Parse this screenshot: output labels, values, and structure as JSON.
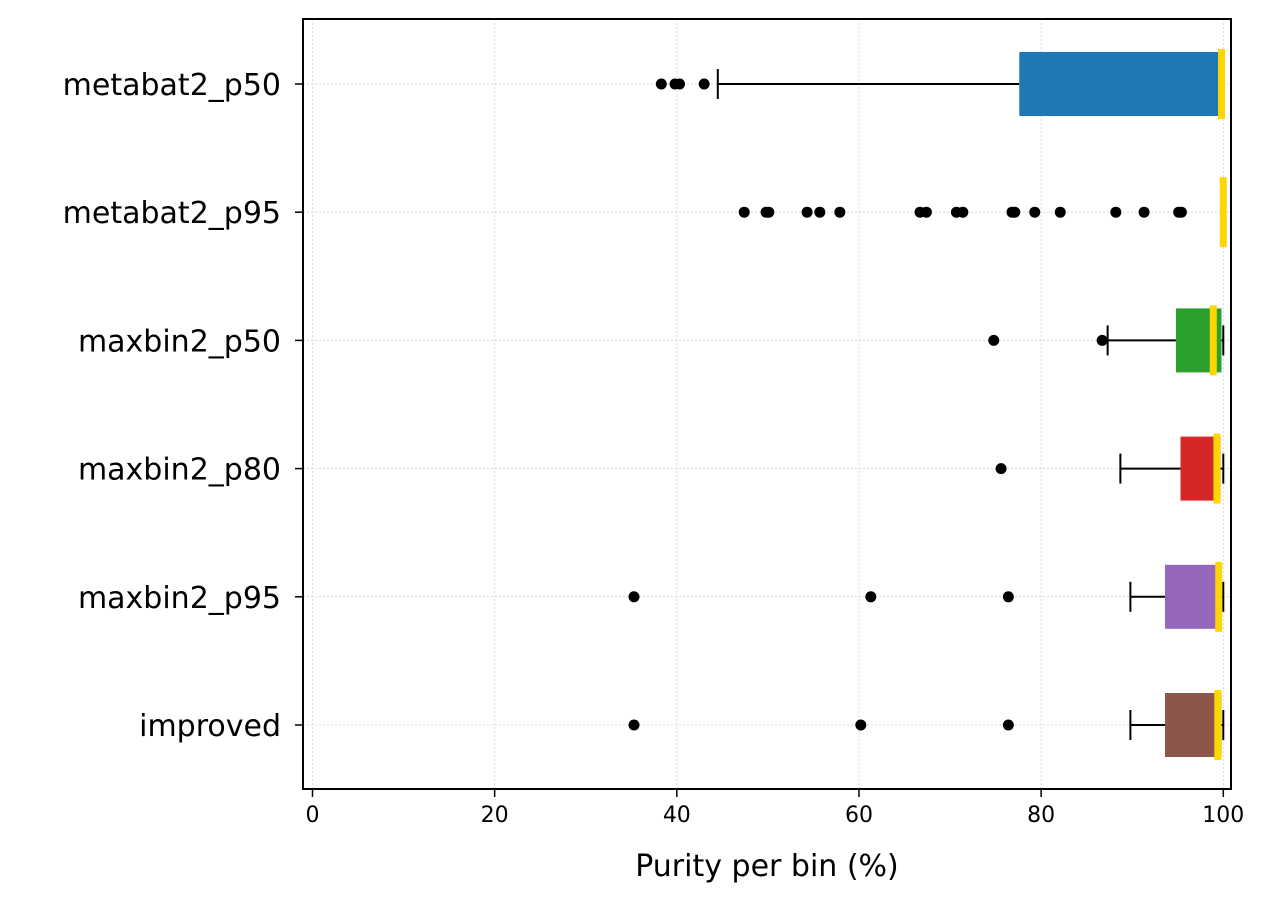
{
  "chart_data": {
    "type": "boxplot",
    "orientation": "horizontal",
    "xlabel": "Purity per bin (%)",
    "ylabel": "",
    "title": "",
    "xlim": [
      -1,
      101
    ],
    "xticks": [
      0,
      20,
      40,
      60,
      80,
      100
    ],
    "grid": true,
    "median_color": "#FFD700",
    "series": [
      {
        "name": "metabat2_p50",
        "color": "#1f77b4",
        "whisker_low": 44.5,
        "q1": 77.6,
        "median": 99.8,
        "q3": 100,
        "whisker_high": 100,
        "outliers": [
          38.3,
          39.8,
          40.3,
          43.0
        ]
      },
      {
        "name": "metabat2_p95",
        "color": "#ff7f0e",
        "whisker_low": 99.8,
        "q1": 100,
        "median": 100,
        "q3": 100,
        "whisker_high": 100,
        "outliers": [
          47.4,
          49.8,
          50.1,
          54.3,
          55.7,
          57.9,
          66.7,
          67.4,
          70.7,
          71.4,
          76.8,
          77.1,
          79.3,
          82.1,
          88.2,
          91.3,
          95.1,
          95.4
        ]
      },
      {
        "name": "maxbin2_p50",
        "color": "#2ca02c",
        "whisker_low": 87.3,
        "q1": 94.8,
        "median": 98.9,
        "q3": 99.8,
        "whisker_high": 100,
        "outliers": [
          74.8,
          86.7
        ]
      },
      {
        "name": "maxbin2_p80",
        "color": "#d62728",
        "whisker_low": 88.7,
        "q1": 95.3,
        "median": 99.3,
        "q3": 99.7,
        "whisker_high": 100,
        "outliers": [
          75.6
        ]
      },
      {
        "name": "maxbin2_p95",
        "color": "#9467bd",
        "whisker_low": 89.8,
        "q1": 93.6,
        "median": 99.5,
        "q3": 99.8,
        "whisker_high": 100,
        "outliers": [
          35.3,
          61.3,
          76.4
        ]
      },
      {
        "name": "improved",
        "color": "#8c564b",
        "whisker_low": 89.8,
        "q1": 93.6,
        "median": 99.4,
        "q3": 99.8,
        "whisker_high": 100,
        "outliers": [
          35.3,
          60.2,
          76.4
        ]
      }
    ]
  }
}
